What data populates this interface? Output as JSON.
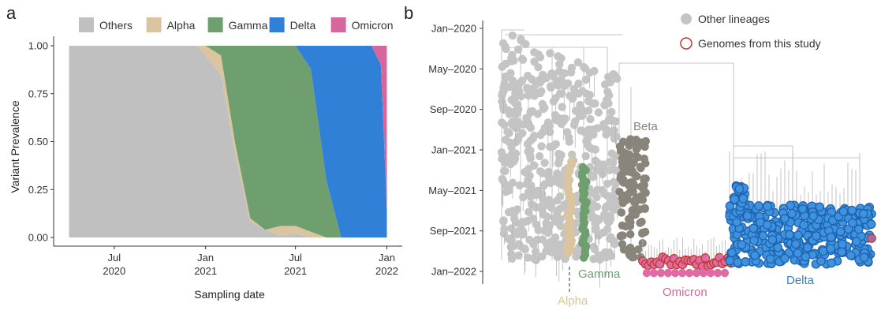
{
  "colors": {
    "Others": "#c0c0c0",
    "Alpha": "#dbc4a0",
    "Gamma": "#709f6f",
    "Delta": "#2f80d6",
    "Omicron": "#d6679c",
    "Beta": "#8a857a",
    "tree_line": "#b5b5b5",
    "other_point": "#c4c4c4",
    "study_ring": "#c0392b",
    "delta_point": "#3d93e0",
    "omicron_point": "#e06aa3"
  },
  "chart_data": [
    {
      "panel": "a",
      "type": "area",
      "stacked": true,
      "ylabel": "Variant Prevalence",
      "xlabel": "Sampling date",
      "legend_position": "top",
      "yticks": [
        "0.00",
        "0.25",
        "0.50",
        "0.75",
        "1.00"
      ],
      "ylim": [
        0,
        1
      ],
      "xticks": [
        {
          "date": "2020-07-01",
          "line1": "Jul",
          "line2": "2020"
        },
        {
          "date": "2021-01-01",
          "line1": "Jan",
          "line2": "2021"
        },
        {
          "date": "2021-07-01",
          "line1": "Jul",
          "line2": "2021"
        },
        {
          "date": "2022-01-01",
          "line1": "Jan",
          "line2": "2022"
        }
      ],
      "xlim": [
        "2020-03-01",
        "2022-02-01"
      ],
      "x": [
        "2020-04-01",
        "2020-12-15",
        "2021-01-01",
        "2021-02-01",
        "2021-03-01",
        "2021-04-01",
        "2021-05-01",
        "2021-06-01",
        "2021-07-01",
        "2021-08-01",
        "2021-09-01",
        "2021-10-01",
        "2021-11-01",
        "2021-12-01",
        "2021-12-20",
        "2022-01-01"
      ],
      "series": [
        {
          "name": "Others",
          "values": [
            1.0,
            1.0,
            0.95,
            0.85,
            0.45,
            0.08,
            0.04,
            0.01,
            0.02,
            0.0,
            0.0,
            0.0,
            0.0,
            0.0,
            0.0,
            0.0
          ]
        },
        {
          "name": "Alpha",
          "values": [
            0.0,
            0.0,
            0.05,
            0.1,
            0.05,
            0.02,
            0.0,
            0.05,
            0.04,
            0.03,
            0.0,
            0.0,
            0.0,
            0.0,
            0.0,
            0.0
          ]
        },
        {
          "name": "Gamma",
          "values": [
            0.0,
            0.0,
            0.0,
            0.05,
            0.5,
            0.9,
            0.96,
            0.94,
            0.94,
            0.85,
            0.3,
            0.0,
            0.0,
            0.0,
            0.0,
            0.0
          ]
        },
        {
          "name": "Delta",
          "values": [
            0.0,
            0.0,
            0.0,
            0.0,
            0.0,
            0.0,
            0.0,
            0.0,
            0.0,
            0.12,
            0.7,
            1.0,
            1.0,
            1.0,
            0.9,
            0.15
          ]
        },
        {
          "name": "Omicron",
          "values": [
            0.0,
            0.0,
            0.0,
            0.0,
            0.0,
            0.0,
            0.0,
            0.0,
            0.0,
            0.0,
            0.0,
            0.0,
            0.0,
            0.0,
            0.1,
            0.85
          ]
        }
      ]
    },
    {
      "panel": "b",
      "type": "scatter",
      "description_type": "phylogenetic-tree",
      "yticks": [
        "Jan–2020",
        "May–2020",
        "Sep–2020",
        "Jan–2021",
        "May–2021",
        "Sep–2021",
        "Jan–2022"
      ],
      "ytick_dates": [
        "2020-01-01",
        "2020-05-01",
        "2020-09-01",
        "2021-01-01",
        "2021-05-01",
        "2021-09-01",
        "2022-01-01"
      ],
      "legend": [
        "Other lineages",
        "Genomes from this study"
      ],
      "legend_position": "top-right",
      "clades": [
        {
          "name": "Beta",
          "label_color": "#8a857a"
        },
        {
          "name": "Alpha",
          "label_color": "#dbc4a0"
        },
        {
          "name": "Gamma",
          "label_color": "#709f6f"
        },
        {
          "name": "Omicron",
          "label_color": "#d6679c"
        },
        {
          "name": "Delta",
          "label_color": "#2f80d6"
        }
      ]
    }
  ],
  "labels": {
    "panel_a": "a",
    "panel_b": "b"
  }
}
